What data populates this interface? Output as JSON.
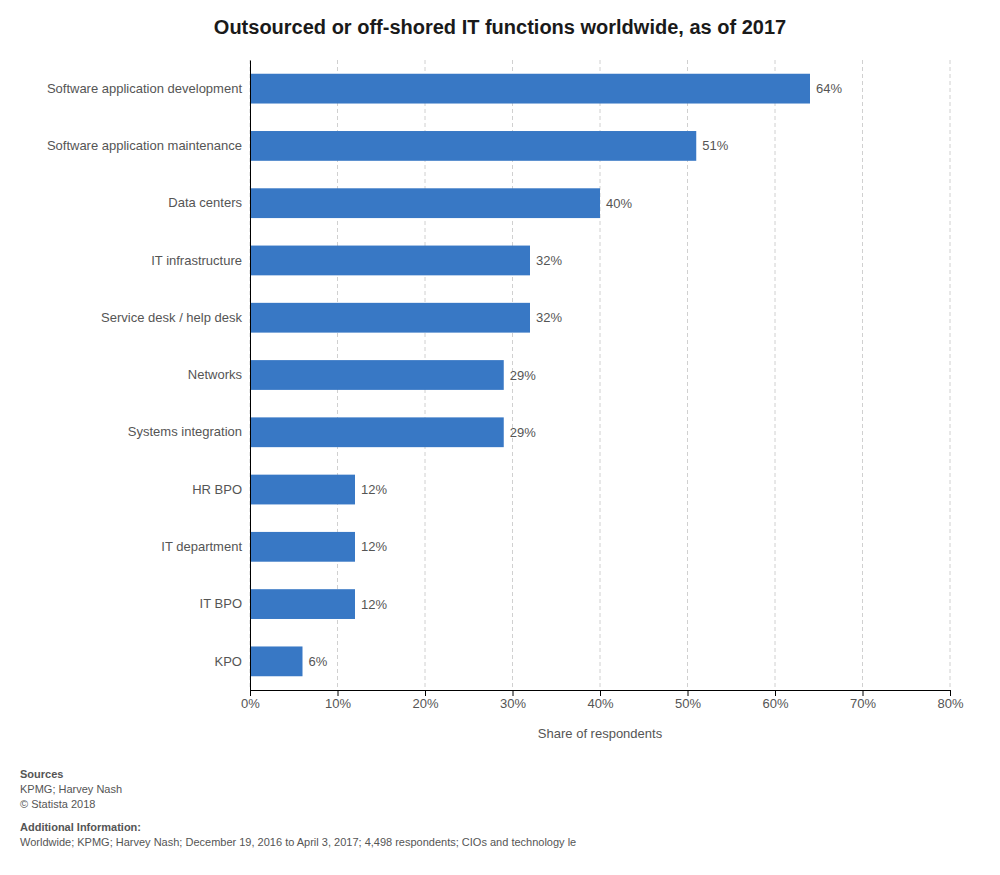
{
  "chart_data": {
    "type": "bar",
    "orientation": "horizontal",
    "title": "Outsourced or off-shored IT functions worldwide, as of 2017",
    "categories": [
      "Software application development",
      "Software application maintenance",
      "Data centers",
      "IT infrastructure",
      "Service desk / help desk",
      "Networks",
      "Systems integration",
      "HR BPO",
      "IT department",
      "IT BPO",
      "KPO"
    ],
    "values": [
      64,
      51,
      40,
      32,
      32,
      29,
      29,
      12,
      12,
      12,
      6
    ],
    "value_labels": [
      "64%",
      "51%",
      "40%",
      "32%",
      "32%",
      "29%",
      "29%",
      "12%",
      "12%",
      "12%",
      "6%"
    ],
    "data_labels": true,
    "color": "#3878c5",
    "xlabel": "Share of respondents",
    "xlim": [
      0,
      80
    ],
    "xticks": [
      {
        "value": 0,
        "label": "0%"
      },
      {
        "value": 10,
        "label": "10%"
      },
      {
        "value": 20,
        "label": "20%"
      },
      {
        "value": 30,
        "label": "30%"
      },
      {
        "value": 40,
        "label": "40%"
      },
      {
        "value": 50,
        "label": "50%"
      },
      {
        "value": 60,
        "label": "60%"
      },
      {
        "value": 70,
        "label": "70%"
      },
      {
        "value": 80,
        "label": "80%"
      }
    ],
    "grid": true,
    "annotations": [
      "Sources\nKPMG; Harvey Nash\n© Statista 2018",
      "Additional Information:\nWorldwide; KPMG; Harvey Nash; December 19, 2016 to April 3, 2017; 4,498 respondents; CIOs and technology le"
    ]
  }
}
